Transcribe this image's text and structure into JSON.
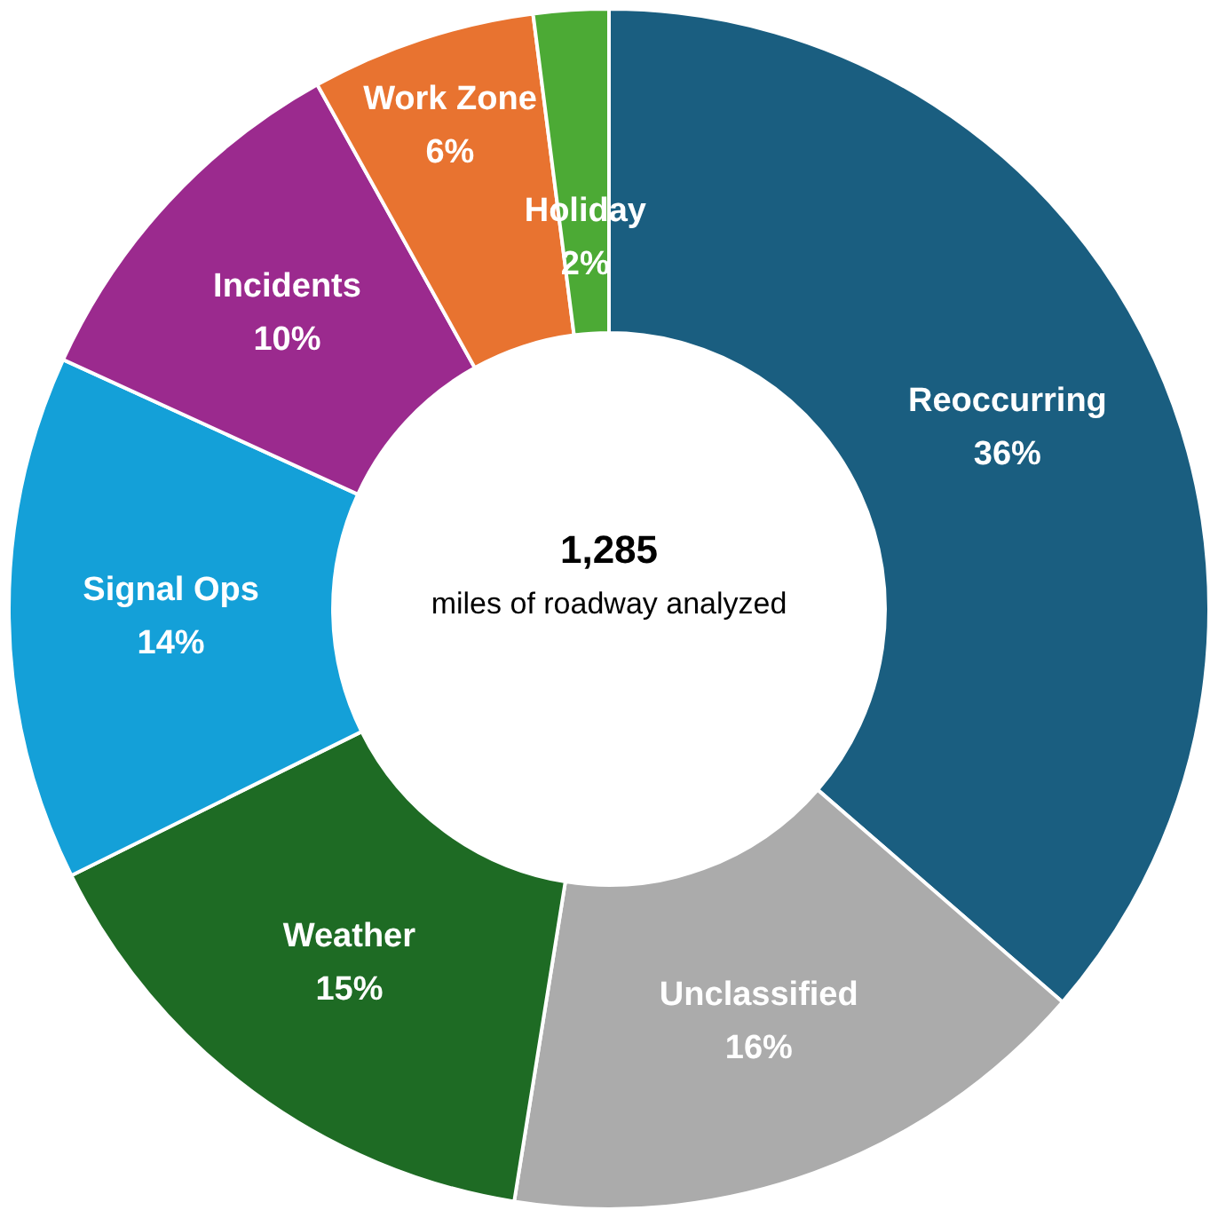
{
  "chart_data": {
    "type": "donut",
    "categories": [
      "Reoccurring",
      "Unclassified",
      "Weather",
      "Signal Ops",
      "Incidents",
      "Work Zone",
      "Holiday"
    ],
    "values": [
      36,
      16,
      15,
      14,
      10,
      6,
      2
    ],
    "value_labels": [
      "36%",
      "16%",
      "15%",
      "14%",
      "10%",
      "6%",
      "2%"
    ],
    "colors": [
      "#1a5e80",
      "#ababab",
      "#1e6b24",
      "#14a0d8",
      "#9b2a8e",
      "#e87330",
      "#4caa35"
    ],
    "annotations": [
      "1,285",
      "miles of roadway analyzed"
    ],
    "legend": false
  }
}
